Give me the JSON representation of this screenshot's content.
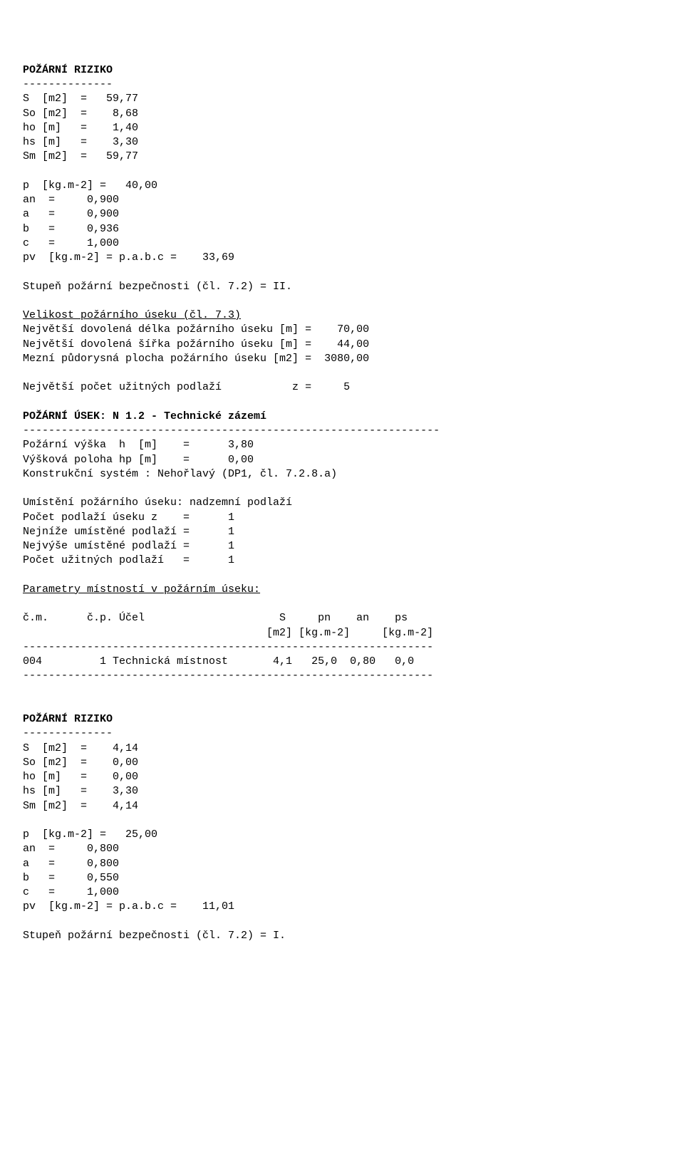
{
  "section1": {
    "title": "POŽÁRNÍ RIZIKO",
    "dash": "--------------",
    "geom": {
      "S": "S  [m2]  =   59,77",
      "So": "So [m2]  =    8,68",
      "ho": "ho [m]   =    1,40",
      "hs": "hs [m]   =    3,30",
      "Sm": "Sm [m2]  =   59,77"
    },
    "load": {
      "p": "p  [kg.m-2] =   40,00",
      "an": "an  =     0,900",
      "a": "a   =     0,900",
      "b": "b   =     0,936",
      "c": "c   =     1,000",
      "pv": "pv  [kg.m-2] = p.a.b.c =    33,69"
    },
    "spb": "Stupeň požární bezpečnosti (čl. 7.2) = II.",
    "size_h": "Velikost požárního úseku (čl. 7.3)",
    "max_len": "Největší dovolená délka požárního úseku [m] =    70,00",
    "max_wid": "Největší dovolená šířka požárního úseku [m] =    44,00",
    "max_area": "Mezní půdorysná plocha požárního úseku [m2] =  3080,00",
    "max_z": "Největší počet užitných podlaží           z =     5"
  },
  "section2": {
    "title": "POŽÁRNÍ ÚSEK: N 1.2 - Technické zázemí",
    "long_dash": "-----------------------------------------------------------------",
    "h": "Požární výška  h  [m]    =      3,80",
    "hp": "Výšková poloha hp [m]    =      0,00",
    "kon": "Konstrukční systém : Nehořlavý (DP1, čl. 7.2.8.a)",
    "loc": "Umístění požárního úseku: nadzemní podlaží",
    "z": "Počet podlaží úseku z    =      1",
    "lo": "Nejníže umístěné podlaží =      1",
    "hi": "Nejvýše umístěné podlaží =      1",
    "uz": "Počet užitných podlaží   =      1",
    "param_h": "Parametry místností v požárním úseku:",
    "tbl_h1": "č.m.      č.p. Účel                     S     pn    an    ps",
    "tbl_h2": "                                      [m2] [kg.m-2]     [kg.m-2]",
    "tbl_sep": "----------------------------------------------------------------",
    "row1": "004         1 Technická místnost       4,1   25,0  0,80   0,0"
  },
  "section3": {
    "title": "POŽÁRNÍ RIZIKO",
    "dash": "--------------",
    "geom": {
      "S": "S  [m2]  =    4,14",
      "So": "So [m2]  =    0,00",
      "ho": "ho [m]   =    0,00",
      "hs": "hs [m]   =    3,30",
      "Sm": "Sm [m2]  =    4,14"
    },
    "load": {
      "p": "p  [kg.m-2] =   25,00",
      "an": "an  =     0,800",
      "a": "a   =     0,800",
      "b": "b   =     0,550",
      "c": "c   =     1,000",
      "pv": "pv  [kg.m-2] = p.a.b.c =    11,01"
    },
    "spb": "Stupeň požární bezpečnosti (čl. 7.2) = I."
  },
  "style": {
    "font_family": "Courier New, monospace",
    "font_size_pt": 11,
    "text_color": "#000000",
    "background_color": "#ffffff"
  }
}
